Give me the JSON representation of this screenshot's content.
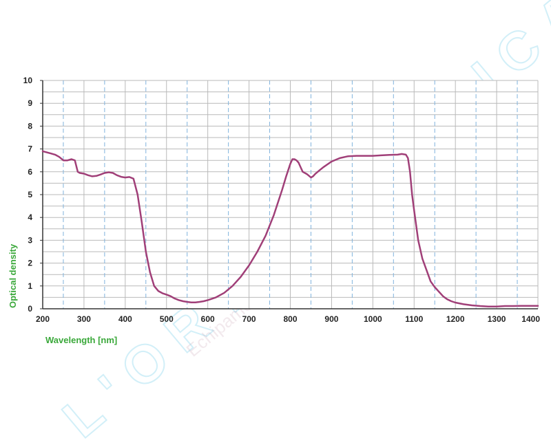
{
  "watermark": {
    "brand": "L'ORTEC MEDICAL",
    "tagline": "Echipamente medicale"
  },
  "colors": {
    "curve": "#a03f78",
    "axis_label": "#3aa83a",
    "grid_solid": "#b9b9b9",
    "grid_dashed": "#7fb2dd",
    "watermark": "#7fd3ec"
  },
  "chart_data": {
    "type": "line",
    "title": "",
    "xlabel": "Wavelength [nm]",
    "ylabel": "Optical density",
    "xlim": [
      200,
      1400
    ],
    "ylim": [
      0,
      10
    ],
    "x_ticks": [
      200,
      300,
      400,
      500,
      600,
      700,
      800,
      900,
      1000,
      1100,
      1200,
      1300,
      1400
    ],
    "y_ticks": [
      0,
      1,
      2,
      3,
      4,
      5,
      6,
      7,
      8,
      9,
      10
    ],
    "minor_x_dashed": [
      250,
      350,
      450,
      550,
      650,
      750,
      850,
      950,
      1050,
      1150,
      1250,
      1350
    ],
    "grid": true,
    "legend": "none",
    "series": [
      {
        "x": [
          200,
          210,
          220,
          230,
          240,
          250,
          260,
          270,
          278,
          285,
          290,
          300,
          310,
          320,
          330,
          340,
          350,
          360,
          370,
          380,
          390,
          400,
          410,
          420,
          430,
          440,
          450,
          460,
          470,
          480,
          490,
          500,
          510,
          520,
          530,
          540,
          550,
          560,
          570,
          580,
          590,
          600,
          620,
          640,
          660,
          680,
          700,
          720,
          740,
          760,
          780,
          790,
          800,
          805,
          810,
          815,
          820,
          825,
          830,
          840,
          850,
          855,
          860,
          870,
          880,
          900,
          920,
          940,
          960,
          980,
          1000,
          1020,
          1040,
          1060,
          1070,
          1080,
          1085,
          1090,
          1095,
          1100,
          1110,
          1120,
          1130,
          1140,
          1150,
          1160,
          1170,
          1180,
          1190,
          1200,
          1220,
          1240,
          1260,
          1280,
          1300,
          1320,
          1340,
          1360,
          1380,
          1400
        ],
        "y": [
          6.9,
          6.85,
          6.8,
          6.75,
          6.65,
          6.5,
          6.5,
          6.55,
          6.5,
          6.0,
          5.95,
          5.92,
          5.85,
          5.8,
          5.82,
          5.88,
          5.95,
          5.98,
          5.95,
          5.85,
          5.78,
          5.75,
          5.77,
          5.7,
          5.0,
          3.8,
          2.5,
          1.6,
          1.0,
          0.78,
          0.68,
          0.62,
          0.55,
          0.45,
          0.38,
          0.33,
          0.3,
          0.28,
          0.28,
          0.3,
          0.33,
          0.38,
          0.5,
          0.7,
          1.0,
          1.4,
          1.9,
          2.5,
          3.2,
          4.1,
          5.2,
          5.8,
          6.35,
          6.55,
          6.55,
          6.5,
          6.4,
          6.2,
          6.0,
          5.9,
          5.75,
          5.8,
          5.9,
          6.05,
          6.2,
          6.45,
          6.6,
          6.68,
          6.7,
          6.7,
          6.7,
          6.72,
          6.74,
          6.75,
          6.78,
          6.75,
          6.6,
          6.0,
          5.0,
          4.3,
          3.0,
          2.2,
          1.7,
          1.2,
          0.95,
          0.75,
          0.55,
          0.42,
          0.33,
          0.27,
          0.2,
          0.15,
          0.12,
          0.1,
          0.1,
          0.12,
          0.12,
          0.13,
          0.13,
          0.13
        ]
      }
    ]
  }
}
